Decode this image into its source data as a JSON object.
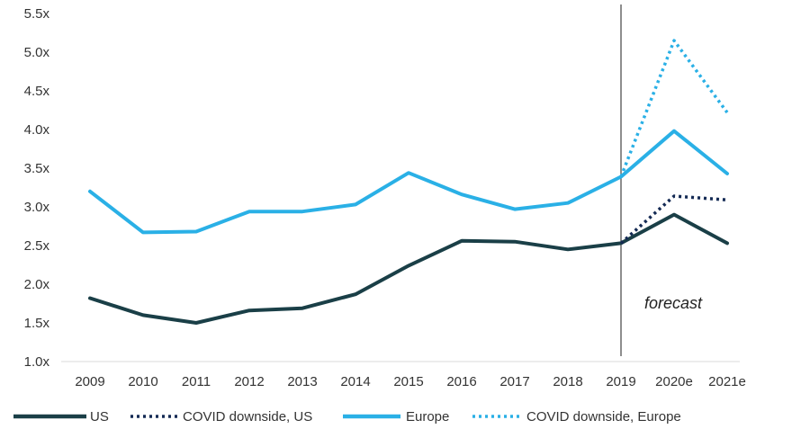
{
  "chart_data": {
    "type": "line",
    "title": "",
    "xlabel": "",
    "ylabel": "",
    "categories": [
      "2009",
      "2010",
      "2011",
      "2012",
      "2013",
      "2014",
      "2015",
      "2016",
      "2017",
      "2018",
      "2019",
      "2020e",
      "2021e"
    ],
    "y_ticks": [
      "1.0x",
      "1.5x",
      "2.0x",
      "2.5x",
      "3.0x",
      "3.5x",
      "4.0x",
      "4.5x",
      "5.0x",
      "5.5x"
    ],
    "ylim": [
      1.0,
      5.5
    ],
    "grid": false,
    "legend_placement": "bottom",
    "series": [
      {
        "name": "US",
        "style": "solid",
        "color": "#1a3f47",
        "values": [
          1.82,
          1.6,
          1.5,
          1.66,
          1.69,
          1.87,
          2.24,
          2.56,
          2.55,
          2.45,
          2.53,
          2.9,
          2.53
        ]
      },
      {
        "name": "COVID downside, US",
        "style": "dotted",
        "color": "#142a54",
        "values": [
          null,
          null,
          null,
          null,
          null,
          null,
          null,
          null,
          null,
          null,
          2.53,
          3.14,
          3.09
        ]
      },
      {
        "name": "Europe",
        "style": "solid",
        "color": "#2ab0e6",
        "values": [
          3.2,
          2.67,
          2.68,
          2.94,
          2.94,
          3.03,
          3.44,
          3.16,
          2.97,
          3.05,
          3.39,
          3.98,
          3.43
        ]
      },
      {
        "name": "COVID downside, Europe",
        "style": "dotted",
        "color": "#2ab0e6",
        "values": [
          null,
          null,
          null,
          null,
          null,
          null,
          null,
          null,
          null,
          null,
          3.39,
          5.15,
          4.22
        ]
      }
    ],
    "annotations": [
      {
        "text": "forecast",
        "type": "vertical-divider",
        "at_category": "2019"
      }
    ]
  }
}
